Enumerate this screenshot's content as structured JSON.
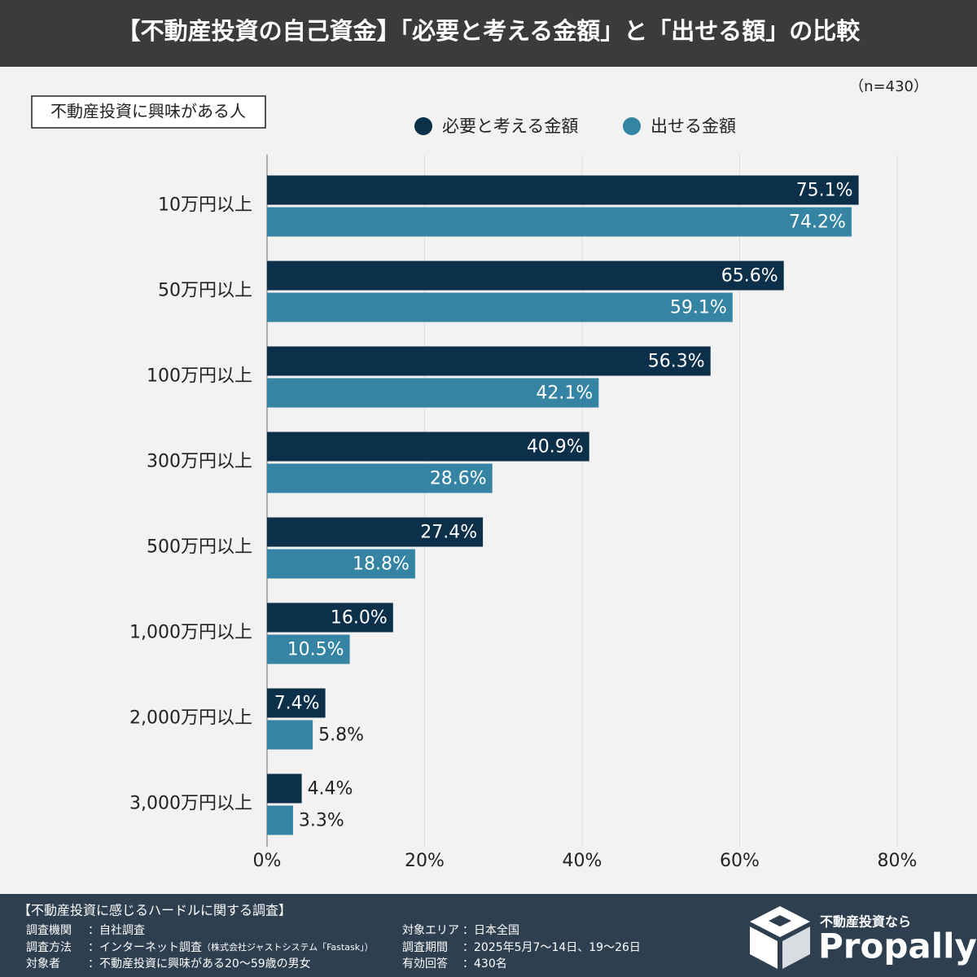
{
  "chart_data": {
    "type": "bar",
    "orientation": "horizontal",
    "title": "【不動産投資の自己資金】「必要と考える金額」と「出せる額」の比較",
    "sample_note": "（n=430）",
    "segment_label": "不動産投資に興味がある人",
    "categories": [
      "10万円以上",
      "50万円以上",
      "100万円以上",
      "300万円以上",
      "500万円以上",
      "1,000万円以上",
      "2,000万円以上",
      "3,000万円以上"
    ],
    "series": [
      {
        "name": "必要と考える金額",
        "color": "#0c2f4a",
        "values": [
          75.1,
          65.6,
          56.3,
          40.9,
          27.4,
          16.0,
          7.4,
          4.4
        ],
        "value_labels": [
          "75.1%",
          "65.6%",
          "56.3%",
          "40.9%",
          "27.4%",
          "16.0%",
          "7.4%",
          "4.4%"
        ]
      },
      {
        "name": "出せる金額",
        "color": "#3584a3",
        "values": [
          74.2,
          59.1,
          42.1,
          28.6,
          18.8,
          10.5,
          5.8,
          3.3
        ],
        "value_labels": [
          "74.2%",
          "59.1%",
          "42.1%",
          "28.6%",
          "18.8%",
          "10.5%",
          "5.8%",
          "3.3%"
        ]
      }
    ],
    "xlim": [
      0,
      80
    ],
    "xticks": [
      {
        "value": 0,
        "label": "0%"
      },
      {
        "value": 20,
        "label": "20%"
      },
      {
        "value": 40,
        "label": "40%"
      },
      {
        "value": 60,
        "label": "60%"
      },
      {
        "value": 80,
        "label": "80%"
      }
    ],
    "grid": true
  },
  "footer": {
    "title": "【不動産投資に感じるハードルに関する調査】",
    "left": [
      {
        "label": "調査機関",
        "value": "：自社調査"
      },
      {
        "label": "調査方法",
        "value": "：インターネット調査",
        "note": "（株式会社ジャストシステム「Fastask」）"
      },
      {
        "label": "対象者",
        "value": "：不動産投資に興味がある20〜59歳の男女"
      }
    ],
    "right": [
      {
        "label": "対象エリア",
        "value": "：日本全国"
      },
      {
        "label": "調査期間",
        "value": "：2025年5月7〜14日、19〜26日"
      },
      {
        "label": "有効回答",
        "value": "：430名"
      }
    ]
  },
  "logo": {
    "tagline": "不動産投資なら",
    "name": "Propally"
  }
}
